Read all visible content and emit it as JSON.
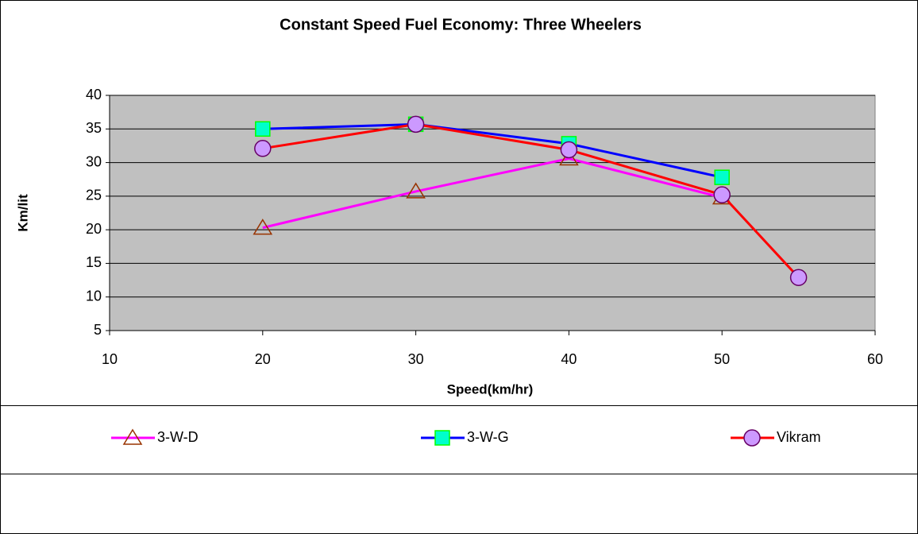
{
  "chart_data": {
    "type": "line",
    "title": "Constant Speed Fuel Economy: Three Wheelers",
    "x_label": "Speed(km/hr)",
    "y_label": "Km/lit",
    "xlim": [
      10,
      60
    ],
    "xticks": [
      10,
      20,
      30,
      40,
      50,
      60
    ],
    "ylim": [
      5,
      40
    ],
    "yticks": [
      5,
      10,
      15,
      20,
      25,
      30,
      35,
      40
    ],
    "grid": true,
    "legend": "bottom",
    "plot_background": "#c0c0c0",
    "series": [
      {
        "name": "3-W-D",
        "color": "#ff00ff",
        "marker": "triangle",
        "marker_fill": "none",
        "marker_stroke": "#993300",
        "x": [
          20,
          30,
          40,
          50
        ],
        "values": [
          20.3,
          25.7,
          30.6,
          24.8
        ]
      },
      {
        "name": "3-W-G",
        "color": "#0000ff",
        "marker": "square",
        "marker_fill": "#00ffcc",
        "marker_stroke": "#00ff00",
        "x": [
          20,
          30,
          40,
          50
        ],
        "values": [
          35,
          35.7,
          32.8,
          27.8
        ]
      },
      {
        "name": "Vikram",
        "color": "#ff0000",
        "marker": "circle",
        "marker_fill": "#cc99ff",
        "marker_stroke": "#660066",
        "x": [
          20,
          30,
          40,
          50,
          55
        ],
        "values": [
          32.1,
          35.7,
          31.9,
          25.2,
          12.9
        ]
      }
    ]
  }
}
